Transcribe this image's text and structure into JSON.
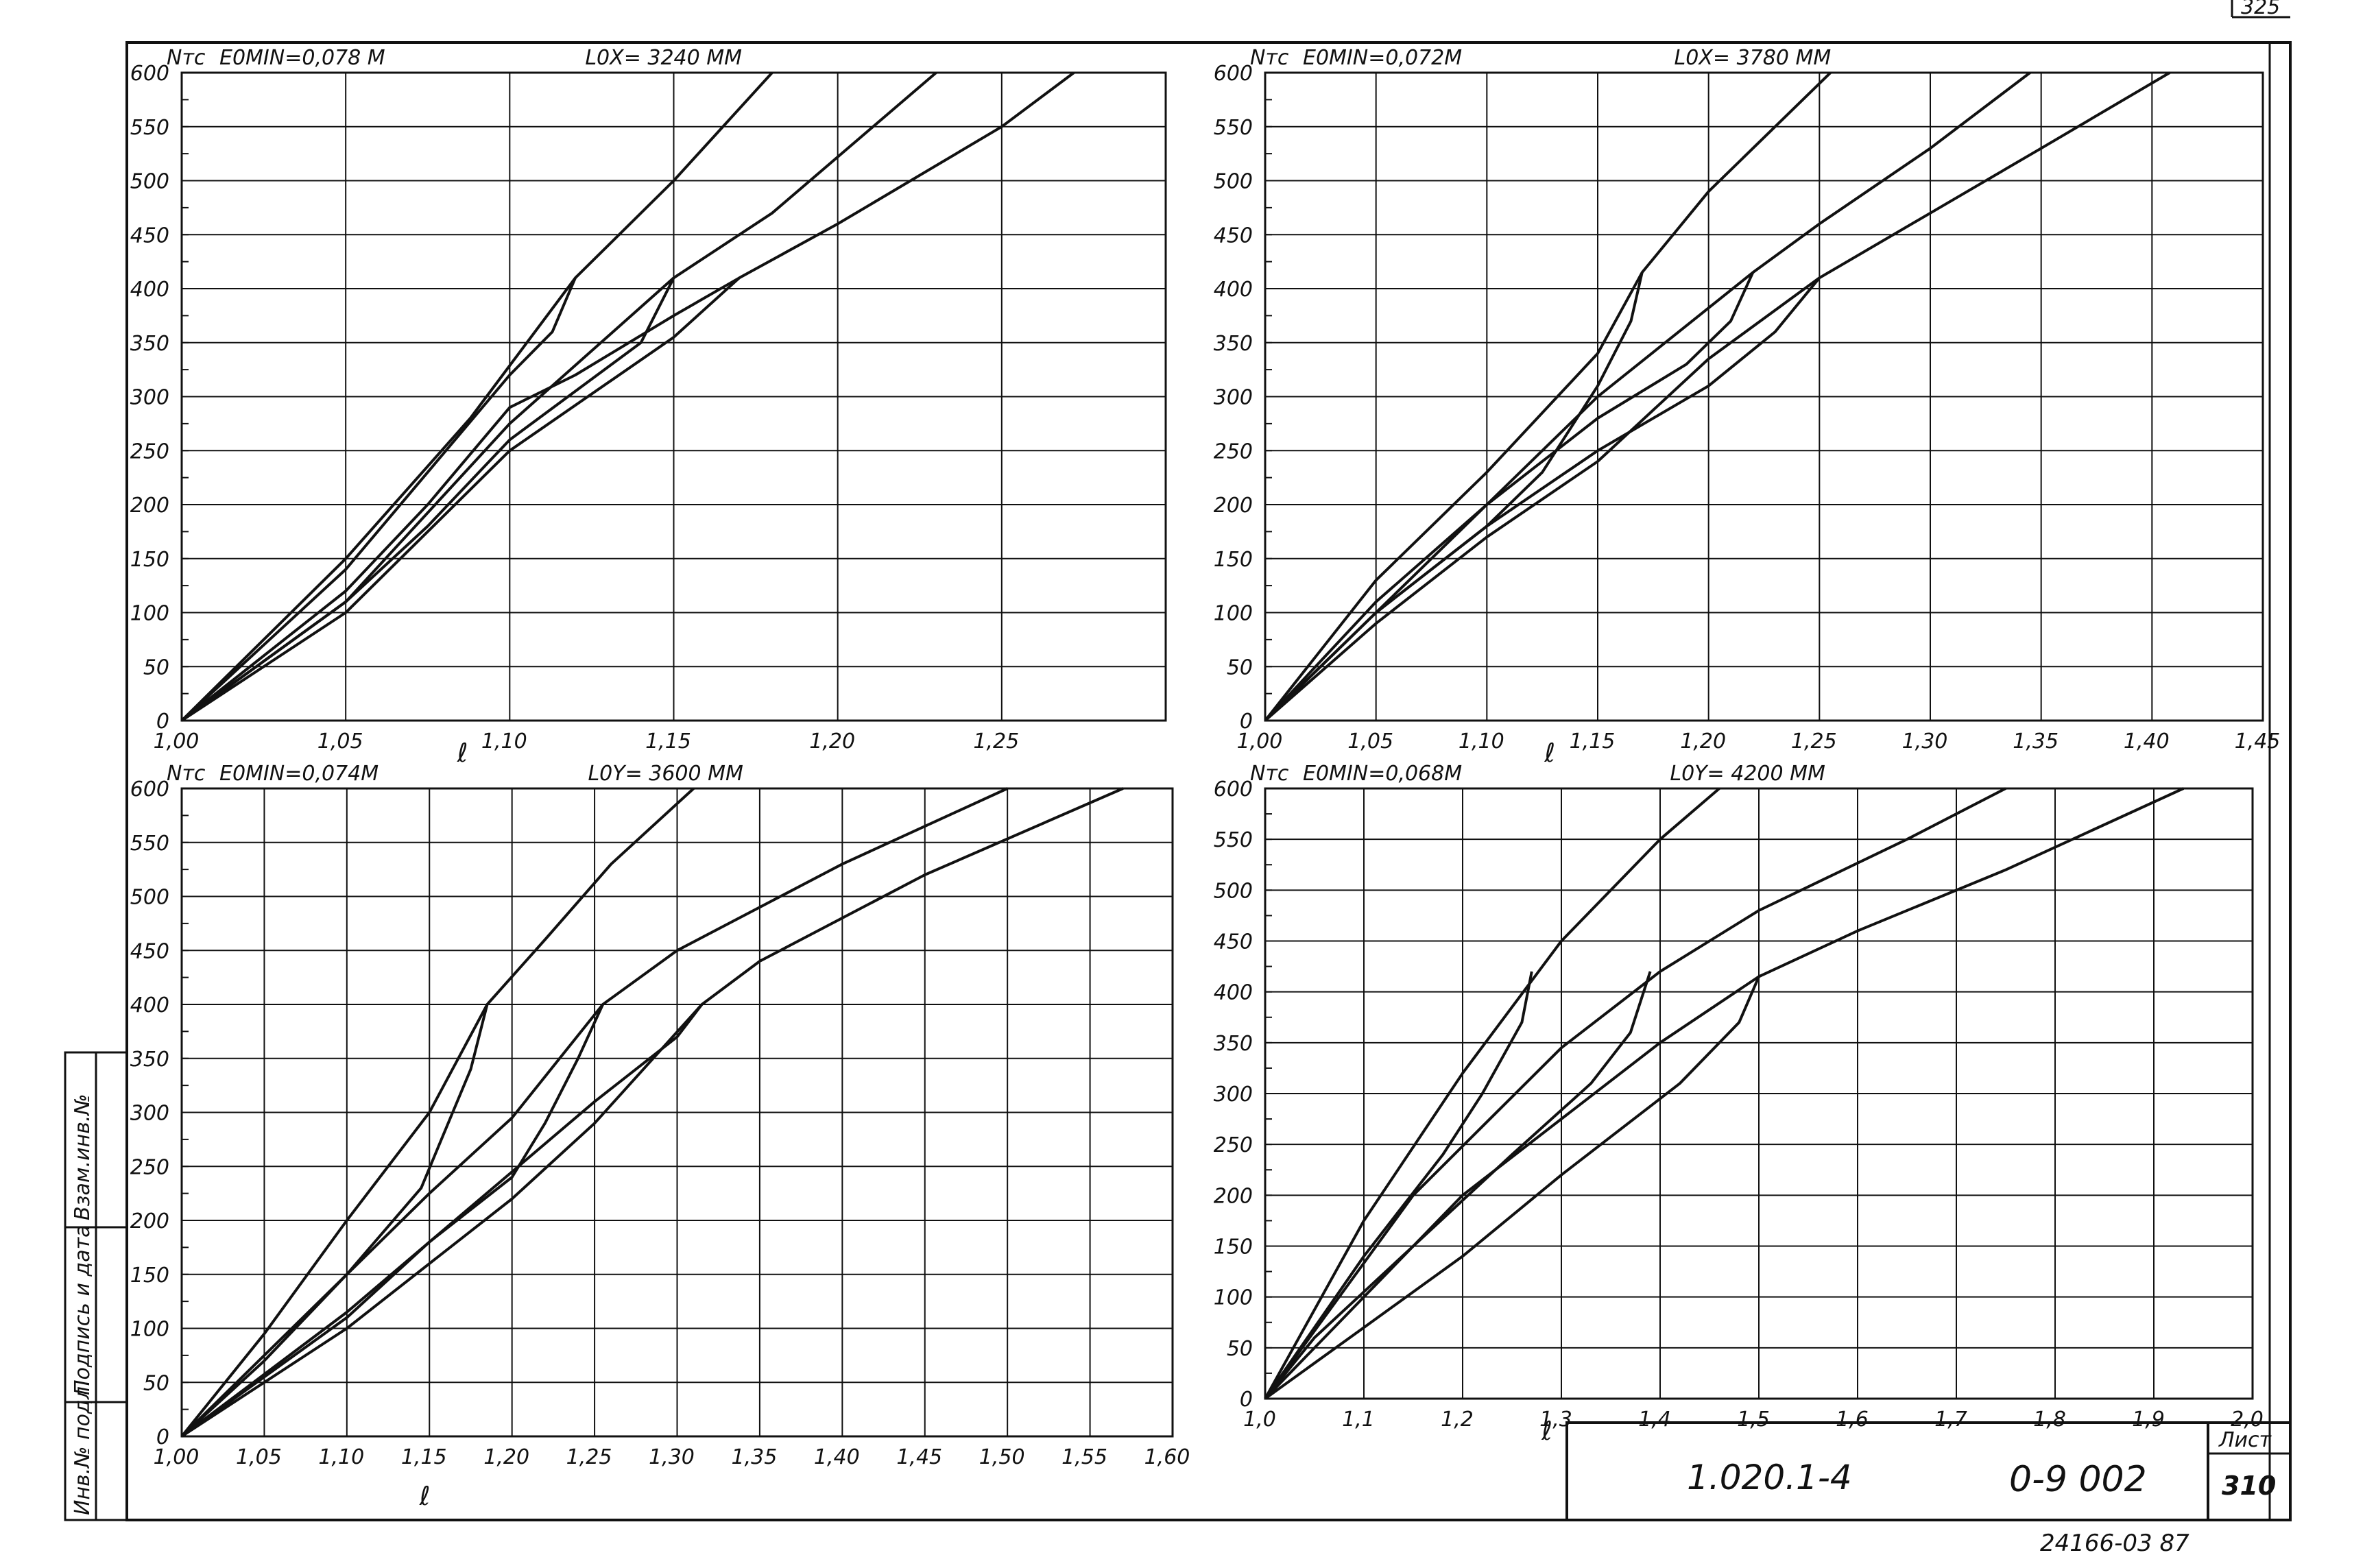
{
  "sheet": {
    "page_corner": "325",
    "doc_code": "1.020.1-4",
    "series_code": "0-9 002",
    "sheet_label": "Лист",
    "sheet_number": "310",
    "archive_number": "24166-03 87",
    "margin_labels": [
      "Инв.№ подл.",
      "Подпись и дата",
      "Взам.инв.№"
    ]
  },
  "chart_data": [
    {
      "type": "line",
      "ylabel": "Nтс",
      "xlabel": "ℓ",
      "eccentricity": "E0MIN=0,078 M",
      "length": "L0X= 3240 MM",
      "xlim": [
        1.0,
        1.3
      ],
      "ylim": [
        0,
        600
      ],
      "xticks": [
        1.0,
        1.05,
        1.1,
        1.15,
        1.2,
        1.25
      ],
      "xtick_labels": [
        "1,00",
        "1,05",
        "1,10",
        "1,15",
        "1,20",
        "1,25"
      ],
      "yticks": [
        0,
        50,
        100,
        150,
        200,
        250,
        300,
        350,
        400,
        450,
        500,
        550,
        600
      ],
      "series": [
        {
          "points": [
            [
              1.0,
              0
            ],
            [
              1.05,
              150
            ],
            [
              1.088,
              280
            ],
            [
              1.12,
              410
            ],
            [
              1.15,
              500
            ],
            [
              1.18,
              600
            ]
          ]
        },
        {
          "points": [
            [
              1.0,
              0
            ],
            [
              1.05,
              110
            ],
            [
              1.1,
              275
            ],
            [
              1.15,
              410
            ],
            [
              1.18,
              470
            ],
            [
              1.23,
              600
            ]
          ]
        },
        {
          "points": [
            [
              1.0,
              0
            ],
            [
              1.05,
              100
            ],
            [
              1.1,
              250
            ],
            [
              1.15,
              355
            ],
            [
              1.17,
              410
            ],
            [
              1.2,
              460
            ],
            [
              1.25,
              550
            ],
            [
              1.272,
              600
            ]
          ]
        },
        {
          "points": [
            [
              1.12,
              410
            ],
            [
              1.113,
              360
            ],
            [
              1.1,
              320
            ],
            [
              1.075,
              230
            ],
            [
              1.05,
              140
            ],
            [
              1.0,
              0
            ]
          ]
        },
        {
          "points": [
            [
              1.15,
              410
            ],
            [
              1.14,
              350
            ],
            [
              1.12,
              305
            ],
            [
              1.1,
              260
            ],
            [
              1.075,
              180
            ],
            [
              1.05,
              110
            ],
            [
              1.0,
              0
            ]
          ]
        },
        {
          "points": [
            [
              1.17,
              410
            ],
            [
              1.15,
              375
            ],
            [
              1.12,
              320
            ],
            [
              1.1,
              290
            ],
            [
              1.075,
              200
            ],
            [
              1.05,
              120
            ],
            [
              1.0,
              0
            ]
          ]
        }
      ]
    },
    {
      "type": "line",
      "ylabel": "Nтс",
      "xlabel": "ℓ",
      "eccentricity": "E0MIN=0,072M",
      "length": "L0X= 3780 MM",
      "xlim": [
        1.0,
        1.45
      ],
      "ylim": [
        0,
        600
      ],
      "xticks": [
        1.0,
        1.05,
        1.1,
        1.15,
        1.2,
        1.25,
        1.3,
        1.35,
        1.4,
        1.45
      ],
      "xtick_labels": [
        "1,00",
        "1,05",
        "1,10",
        "1,15",
        "1,20",
        "1,25",
        "1,30",
        "1,35",
        "1,40",
        "1,45"
      ],
      "yticks": [
        0,
        50,
        100,
        150,
        200,
        250,
        300,
        350,
        400,
        450,
        500,
        550,
        600
      ],
      "series": [
        {
          "points": [
            [
              1.0,
              0
            ],
            [
              1.05,
              130
            ],
            [
              1.1,
              230
            ],
            [
              1.15,
              340
            ],
            [
              1.17,
              415
            ],
            [
              1.2,
              490
            ],
            [
              1.255,
              600
            ]
          ]
        },
        {
          "points": [
            [
              1.0,
              0
            ],
            [
              1.05,
              100
            ],
            [
              1.1,
              200
            ],
            [
              1.15,
              300
            ],
            [
              1.22,
              415
            ],
            [
              1.25,
              460
            ],
            [
              1.3,
              530
            ],
            [
              1.345,
              600
            ]
          ]
        },
        {
          "points": [
            [
              1.0,
              0
            ],
            [
              1.05,
              90
            ],
            [
              1.1,
              170
            ],
            [
              1.15,
              240
            ],
            [
              1.2,
              335
            ],
            [
              1.25,
              410
            ],
            [
              1.3,
              470
            ],
            [
              1.35,
              530
            ],
            [
              1.408,
              600
            ]
          ]
        },
        {
          "points": [
            [
              1.17,
              415
            ],
            [
              1.165,
              370
            ],
            [
              1.15,
              310
            ],
            [
              1.125,
              230
            ],
            [
              1.1,
              180
            ],
            [
              1.05,
              100
            ],
            [
              1.0,
              0
            ]
          ]
        },
        {
          "points": [
            [
              1.22,
              415
            ],
            [
              1.21,
              370
            ],
            [
              1.19,
              330
            ],
            [
              1.15,
              280
            ],
            [
              1.1,
              200
            ],
            [
              1.05,
              110
            ],
            [
              1.0,
              0
            ]
          ]
        },
        {
          "points": [
            [
              1.25,
              410
            ],
            [
              1.23,
              360
            ],
            [
              1.2,
              310
            ],
            [
              1.15,
              250
            ],
            [
              1.1,
              180
            ],
            [
              1.05,
              100
            ],
            [
              1.0,
              0
            ]
          ]
        }
      ]
    },
    {
      "type": "line",
      "ylabel": "Nтс",
      "xlabel": "ℓ",
      "eccentricity": "E0MIN=0,074M",
      "length": "L0Y= 3600 MM",
      "xlim": [
        1.0,
        1.6
      ],
      "ylim": [
        0,
        600
      ],
      "xticks": [
        1.0,
        1.05,
        1.1,
        1.15,
        1.2,
        1.25,
        1.3,
        1.35,
        1.4,
        1.45,
        1.5,
        1.55,
        1.6
      ],
      "xtick_labels": [
        "1,00",
        "1,05",
        "1,10",
        "1,15",
        "1,20",
        "1,25",
        "1,30",
        "1,35",
        "1,40",
        "1,45",
        "1,50",
        "1,55",
        "1,60"
      ],
      "yticks": [
        0,
        50,
        100,
        150,
        200,
        250,
        300,
        350,
        400,
        450,
        500,
        550,
        600
      ],
      "series": [
        {
          "points": [
            [
              1.0,
              0
            ],
            [
              1.05,
              95
            ],
            [
              1.1,
              200
            ],
            [
              1.15,
              300
            ],
            [
              1.185,
              400
            ],
            [
              1.22,
              460
            ],
            [
              1.26,
              530
            ],
            [
              1.31,
              600
            ]
          ]
        },
        {
          "points": [
            [
              1.0,
              0
            ],
            [
              1.1,
              150
            ],
            [
              1.15,
              225
            ],
            [
              1.2,
              295
            ],
            [
              1.255,
              400
            ],
            [
              1.3,
              450
            ],
            [
              1.4,
              530
            ],
            [
              1.5,
              600
            ]
          ]
        },
        {
          "points": [
            [
              1.0,
              0
            ],
            [
              1.1,
              100
            ],
            [
              1.2,
              220
            ],
            [
              1.25,
              290
            ],
            [
              1.315,
              400
            ],
            [
              1.35,
              440
            ],
            [
              1.45,
              520
            ],
            [
              1.57,
              600
            ]
          ]
        },
        {
          "points": [
            [
              1.185,
              400
            ],
            [
              1.175,
              340
            ],
            [
              1.16,
              285
            ],
            [
              1.145,
              230
            ],
            [
              1.1,
              150
            ],
            [
              1.05,
              70
            ],
            [
              1.0,
              0
            ]
          ]
        },
        {
          "points": [
            [
              1.255,
              400
            ],
            [
              1.24,
              350
            ],
            [
              1.22,
              290
            ],
            [
              1.2,
              240
            ],
            [
              1.15,
              180
            ],
            [
              1.1,
              110
            ],
            [
              1.0,
              0
            ]
          ]
        },
        {
          "points": [
            [
              1.315,
              400
            ],
            [
              1.3,
              370
            ],
            [
              1.25,
              310
            ],
            [
              1.2,
              245
            ],
            [
              1.15,
              180
            ],
            [
              1.1,
              115
            ],
            [
              1.0,
              0
            ]
          ]
        }
      ]
    },
    {
      "type": "line",
      "ylabel": "Nтс",
      "xlabel": "ℓ",
      "eccentricity": "E0MIN=0,068M",
      "length": "L0Y= 4200 MM",
      "xlim": [
        1.0,
        2.0
      ],
      "ylim": [
        0,
        600
      ],
      "xticks": [
        1.0,
        1.1,
        1.2,
        1.3,
        1.4,
        1.5,
        1.6,
        1.7,
        1.8,
        1.9,
        2.0
      ],
      "xtick_labels": [
        "1,0",
        "1,1",
        "1,2",
        "1,3",
        "1,4",
        "1,5",
        "1,6",
        "1,7",
        "1,8",
        "1,9",
        "2,0"
      ],
      "yticks": [
        0,
        50,
        100,
        150,
        200,
        250,
        300,
        350,
        400,
        450,
        500,
        550,
        600
      ],
      "series": [
        {
          "points": [
            [
              1.0,
              0
            ],
            [
              1.1,
              175
            ],
            [
              1.2,
              320
            ],
            [
              1.3,
              450
            ],
            [
              1.4,
              550
            ],
            [
              1.46,
              600
            ]
          ]
        },
        {
          "points": [
            [
              1.0,
              0
            ],
            [
              1.15,
              200
            ],
            [
              1.3,
              345
            ],
            [
              1.4,
              420
            ],
            [
              1.5,
              480
            ],
            [
              1.65,
              550
            ],
            [
              1.75,
              600
            ]
          ]
        },
        {
          "points": [
            [
              1.0,
              0
            ],
            [
              1.2,
              200
            ],
            [
              1.4,
              350
            ],
            [
              1.5,
              415
            ],
            [
              1.6,
              460
            ],
            [
              1.75,
              520
            ],
            [
              1.93,
              600
            ]
          ]
        },
        {
          "points": [
            [
              1.27,
              420
            ],
            [
              1.26,
              370
            ],
            [
              1.22,
              300
            ],
            [
              1.18,
              240
            ],
            [
              1.1,
              140
            ],
            [
              1.05,
              70
            ],
            [
              1.0,
              0
            ]
          ]
        },
        {
          "points": [
            [
              1.39,
              420
            ],
            [
              1.37,
              360
            ],
            [
              1.33,
              310
            ],
            [
              1.25,
              240
            ],
            [
              1.15,
              150
            ],
            [
              1.05,
              60
            ],
            [
              1.0,
              0
            ]
          ]
        },
        {
          "points": [
            [
              1.5,
              415
            ],
            [
              1.48,
              370
            ],
            [
              1.42,
              310
            ],
            [
              1.3,
              220
            ],
            [
              1.2,
              140
            ],
            [
              1.1,
              70
            ],
            [
              1.0,
              0
            ]
          ]
        }
      ]
    }
  ]
}
